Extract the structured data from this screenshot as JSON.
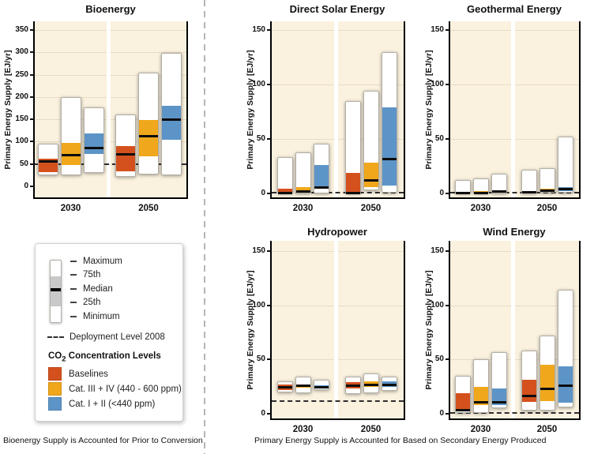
{
  "colors": {
    "baselines": "#d4511e",
    "cat_iii_iv": "#f0a71b",
    "cat_i_ii": "#5d94c7",
    "plot_bg": "#faf1de",
    "grid": "#e6dcc6",
    "median": "#0d0d0d",
    "divider": "#b5b5b5"
  },
  "legend": {
    "boxplot_labels": [
      "Maximum",
      "75th",
      "Median",
      "25th",
      "Minimum"
    ],
    "deployment_label": "Deployment Level 2008",
    "co2_prefix": "CO",
    "co2_sub": "2",
    "co2_suffix": " Concentration Levels",
    "categories": [
      {
        "label": "Baselines",
        "color_key": "baselines"
      },
      {
        "label": "Cat. III + IV (440 - 600 ppm)",
        "color_key": "cat_iii_iv"
      },
      {
        "label": "Cat. I + II (<440 ppm)",
        "color_key": "cat_i_ii"
      }
    ]
  },
  "captions": {
    "left": "Bioenergy Supply is Accounted for Prior to Conversion",
    "right": "Primary Energy Supply is Accounted for Based on Secondary Energy Produced"
  },
  "chart_data": [
    {
      "type": "boxplot",
      "title": "Bioenergy",
      "ylabel": "Primary Energy Supply [EJ/yr]",
      "ylim": [
        0,
        350
      ],
      "yticks": [
        0,
        50,
        100,
        150,
        200,
        250,
        300,
        350
      ],
      "deployment_level_2008": 50,
      "categories": [
        "2030",
        "2050"
      ],
      "series": [
        {
          "name": "Baselines",
          "color_key": "baselines",
          "boxes": [
            {
              "min": 25,
              "p25": 31,
              "median": 57,
              "p75": 62,
              "max": 95
            },
            {
              "min": 21,
              "p25": 33,
              "median": 72,
              "p75": 91,
              "max": 160
            }
          ]
        },
        {
          "name": "Cat. III + IV (440 - 600 ppm)",
          "color_key": "cat_iii_iv",
          "boxes": [
            {
              "min": 25,
              "p25": 47,
              "median": 70,
              "p75": 98,
              "max": 200
            },
            {
              "min": 26,
              "p25": 67,
              "median": 114,
              "p75": 148,
              "max": 255
            }
          ]
        },
        {
          "name": "Cat. I + II (<440 ppm)",
          "color_key": "cat_i_ii",
          "boxes": [
            {
              "min": 30,
              "p25": 72,
              "median": 87,
              "p75": 118,
              "max": 177
            },
            {
              "min": 25,
              "p25": 104,
              "median": 151,
              "p75": 181,
              "max": 298
            }
          ]
        }
      ]
    },
    {
      "type": "boxplot",
      "title": "Direct Solar Energy",
      "ylabel": "Primary Energy Supply [EJ/yr]",
      "ylim": [
        0,
        150
      ],
      "yticks": [
        0,
        50,
        100,
        150
      ],
      "deployment_level_2008": 0.5,
      "categories": [
        "2030",
        "2050"
      ],
      "series": [
        {
          "name": "Baselines",
          "color_key": "baselines",
          "boxes": [
            {
              "min": 0,
              "p25": 0.5,
              "median": 1,
              "p75": 4,
              "max": 33
            },
            {
              "min": 0,
              "p25": 0.5,
              "median": 1,
              "p75": 19,
              "max": 85
            }
          ]
        },
        {
          "name": "Cat. III + IV (440 - 600 ppm)",
          "color_key": "cat_iii_iv",
          "boxes": [
            {
              "min": 0,
              "p25": 1,
              "median": 2,
              "p75": 6,
              "max": 38
            },
            {
              "min": 3,
              "p25": 6,
              "median": 12,
              "p75": 28,
              "max": 94
            }
          ]
        },
        {
          "name": "Cat. I + II (<440 ppm)",
          "color_key": "cat_i_ii",
          "boxes": [
            {
              "min": 0,
              "p25": 5,
              "median": 6,
              "p75": 26,
              "max": 46
            },
            {
              "min": 1,
              "p25": 7,
              "median": 32,
              "p75": 79,
              "max": 130
            }
          ]
        }
      ]
    },
    {
      "type": "boxplot",
      "title": "Geothermal Energy",
      "ylabel": "Primary Energy Supply [EJ/yr]",
      "ylim": [
        0,
        150
      ],
      "yticks": [
        0,
        50,
        100,
        150
      ],
      "deployment_level_2008": 0.4,
      "categories": [
        "2030",
        "2050"
      ],
      "series": [
        {
          "name": "Baselines",
          "color_key": "baselines",
          "boxes": [
            {
              "min": 0,
              "p25": 0.3,
              "median": 0.7,
              "p75": 1.3,
              "max": 12
            },
            {
              "min": 0,
              "p25": 0.5,
              "median": 1.5,
              "p75": 2.5,
              "max": 22
            }
          ]
        },
        {
          "name": "Cat. III + IV (440 - 600 ppm)",
          "color_key": "cat_iii_iv",
          "boxes": [
            {
              "min": 0,
              "p25": 0.5,
              "median": 1,
              "p75": 2,
              "max": 14
            },
            {
              "min": 0.5,
              "p25": 2,
              "median": 3,
              "p75": 4.5,
              "max": 23
            }
          ]
        },
        {
          "name": "Cat. I + II (<440 ppm)",
          "color_key": "cat_i_ii",
          "boxes": [
            {
              "min": 0,
              "p25": 1,
              "median": 2,
              "p75": 3,
              "max": 18
            },
            {
              "min": 0.5,
              "p25": 2,
              "median": 4,
              "p75": 6,
              "max": 52
            }
          ]
        }
      ]
    },
    {
      "type": "boxplot",
      "title": "Hydropower",
      "ylabel": "Primary Energy Supply [EJ/yr]",
      "ylim": [
        0,
        150
      ],
      "yticks": [
        0,
        50,
        100,
        150
      ],
      "deployment_level_2008": 12,
      "categories": [
        "2030",
        "2050"
      ],
      "series": [
        {
          "name": "Baselines",
          "color_key": "baselines",
          "boxes": [
            {
              "min": 20,
              "p25": 22,
              "median": 25,
              "p75": 27,
              "max": 30
            },
            {
              "min": 18,
              "p25": 23,
              "median": 26,
              "p75": 29,
              "max": 34
            }
          ]
        },
        {
          "name": "Cat. III + IV (440 - 600 ppm)",
          "color_key": "cat_iii_iv",
          "boxes": [
            {
              "min": 19,
              "p25": 24,
              "median": 26,
              "p75": 27,
              "max": 34
            },
            {
              "min": 19,
              "p25": 25,
              "median": 27,
              "p75": 30,
              "max": 37
            }
          ]
        },
        {
          "name": "Cat. I + II (<440 ppm)",
          "color_key": "cat_i_ii",
          "boxes": [
            {
              "min": 22,
              "p25": 24,
              "median": 25,
              "p75": 26,
              "max": 31
            },
            {
              "min": 21,
              "p25": 25,
              "median": 27,
              "p75": 30,
              "max": 34
            }
          ]
        }
      ]
    },
    {
      "type": "boxplot",
      "title": "Wind Energy",
      "ylabel": "Primary Energy Supply [EJ/yr]",
      "ylim": [
        0,
        150
      ],
      "yticks": [
        0,
        50,
        100,
        150
      ],
      "deployment_level_2008": 1,
      "categories": [
        "2030",
        "2050"
      ],
      "series": [
        {
          "name": "Baselines",
          "color_key": "baselines",
          "boxes": [
            {
              "min": 1,
              "p25": 3,
              "median": 4,
              "p75": 19,
              "max": 35
            },
            {
              "min": 3,
              "p25": 11,
              "median": 17,
              "p75": 31,
              "max": 58
            }
          ]
        },
        {
          "name": "Cat. III + IV (440 - 600 ppm)",
          "color_key": "cat_iii_iv",
          "boxes": [
            {
              "min": 1,
              "p25": 8,
              "median": 11,
              "p75": 25,
              "max": 50
            },
            {
              "min": 3,
              "p25": 12,
              "median": 23,
              "p75": 45,
              "max": 72
            }
          ]
        },
        {
          "name": "Cat. I + II (<440 ppm)",
          "color_key": "cat_i_ii",
          "boxes": [
            {
              "min": 5,
              "p25": 8,
              "median": 11,
              "p75": 23,
              "max": 57
            },
            {
              "min": 6,
              "p25": 10,
              "median": 26,
              "p75": 44,
              "max": 114
            }
          ]
        }
      ]
    }
  ]
}
